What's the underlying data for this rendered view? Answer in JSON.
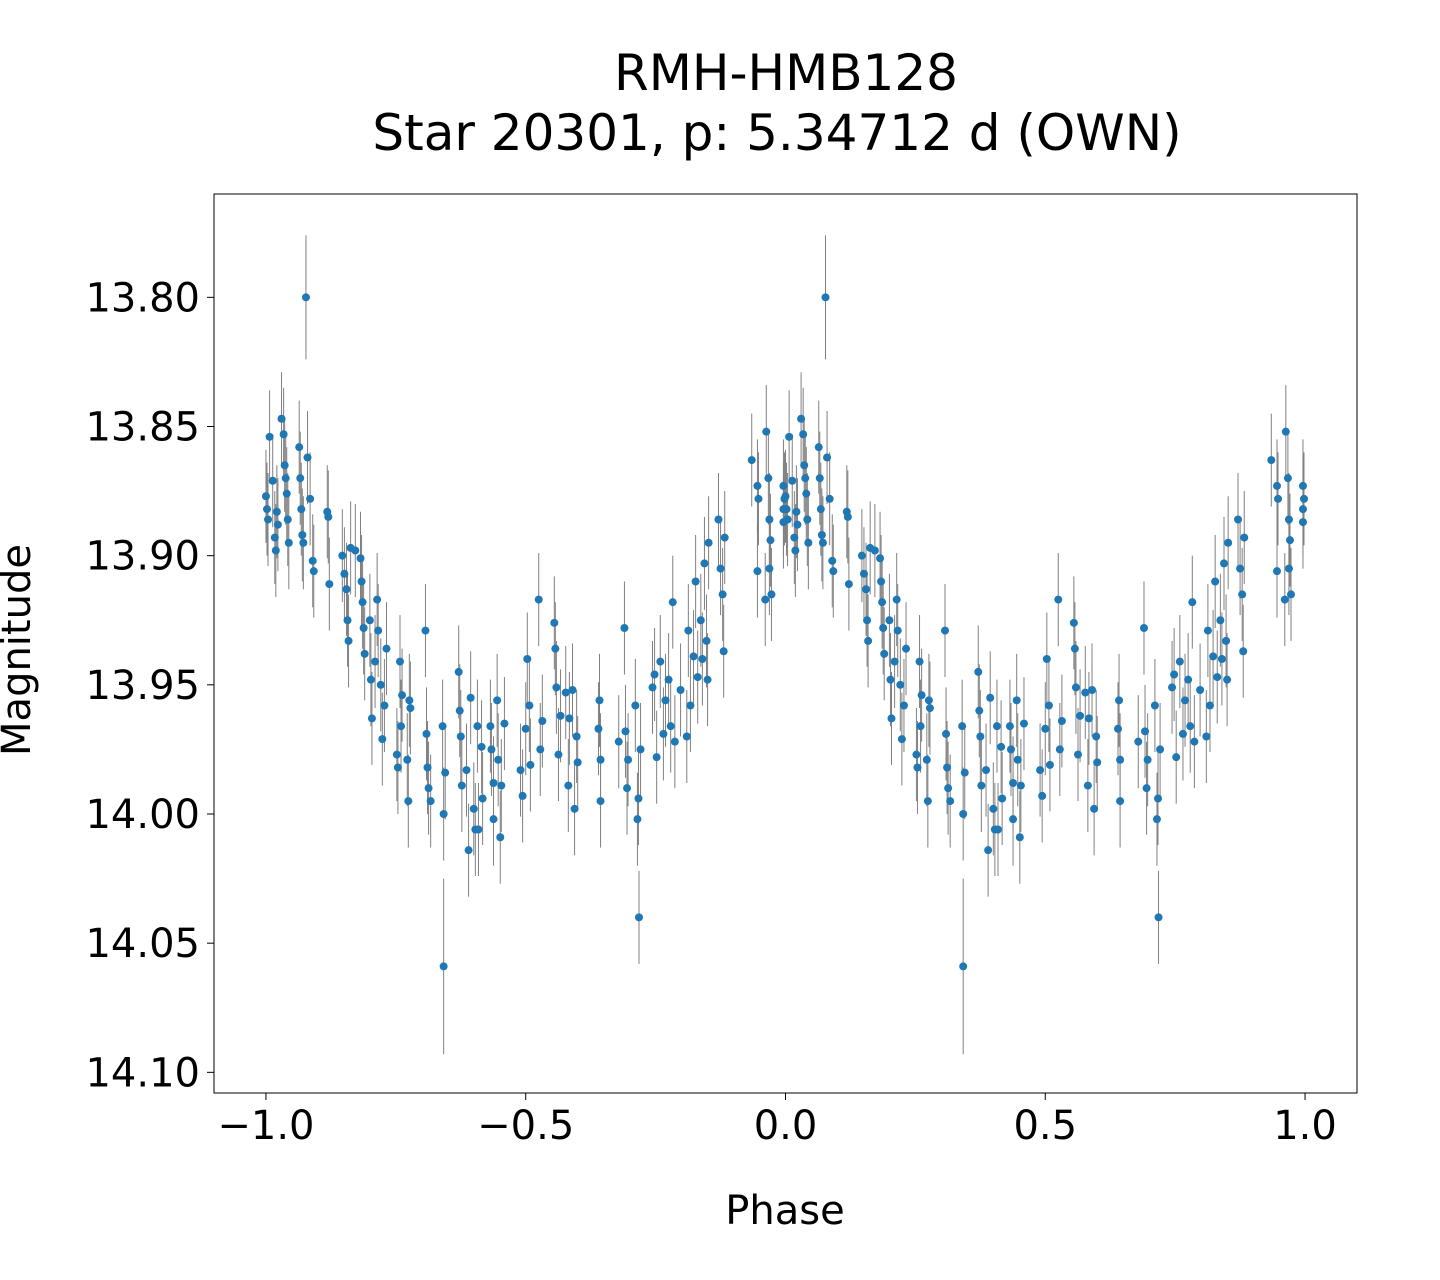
{
  "chart_data": {
    "type": "scatter",
    "title": [
      "RMH-HMB128",
      "Star 20301, p: 5.34712 d (OWN)"
    ],
    "xlabel": "Phase",
    "ylabel": "Magnitude",
    "xlim": [
      -1.1,
      1.1
    ],
    "ylim": [
      14.108,
      13.76
    ],
    "y_inverted": true,
    "xticks": [
      -1.0,
      -0.5,
      0.0,
      0.5,
      1.0
    ],
    "xtick_labels": [
      "−1.0",
      "−0.5",
      "0.0",
      "0.5",
      "1.0"
    ],
    "yticks": [
      13.8,
      13.85,
      13.9,
      13.95,
      14.0,
      14.05,
      14.1
    ],
    "ytick_labels": [
      "13.80",
      "13.85",
      "13.90",
      "13.95",
      "14.00",
      "14.05",
      "14.10"
    ],
    "grid": false,
    "marker_color": "#1f77b4",
    "errorbar_color": "#808080",
    "phase_repeat_offsets": [
      0,
      -1
    ],
    "points_phase_mag_err": [
      [
        0.0,
        13.877,
        0.018
      ],
      [
        0.002,
        13.882,
        0.018
      ],
      [
        0.004,
        13.886,
        0.018
      ],
      [
        0.007,
        13.854,
        0.018
      ],
      [
        0.013,
        13.871,
        0.018
      ],
      [
        0.017,
        13.893,
        0.018
      ],
      [
        0.019,
        13.898,
        0.018
      ],
      [
        0.021,
        13.883,
        0.018
      ],
      [
        0.023,
        13.888,
        0.018
      ],
      [
        0.03,
        13.847,
        0.018
      ],
      [
        0.034,
        13.853,
        0.018
      ],
      [
        0.036,
        13.865,
        0.018
      ],
      [
        0.038,
        13.87,
        0.018
      ],
      [
        0.04,
        13.876,
        0.018
      ],
      [
        0.042,
        13.886,
        0.018
      ],
      [
        0.044,
        13.895,
        0.018
      ],
      [
        0.064,
        13.858,
        0.018
      ],
      [
        0.066,
        13.87,
        0.018
      ],
      [
        0.068,
        13.882,
        0.018
      ],
      [
        0.07,
        13.892,
        0.018
      ],
      [
        0.072,
        13.895,
        0.018
      ],
      [
        0.077,
        13.8,
        0.024
      ],
      [
        0.08,
        13.862,
        0.018
      ],
      [
        0.085,
        13.878,
        0.018
      ],
      [
        0.09,
        13.902,
        0.018
      ],
      [
        0.092,
        13.906,
        0.018
      ],
      [
        0.118,
        13.883,
        0.018
      ],
      [
        0.12,
        13.885,
        0.018
      ],
      [
        0.122,
        13.911,
        0.018
      ],
      [
        0.147,
        13.9,
        0.018
      ],
      [
        0.151,
        13.907,
        0.018
      ],
      [
        0.155,
        13.913,
        0.018
      ],
      [
        0.157,
        13.925,
        0.018
      ],
      [
        0.159,
        13.933,
        0.018
      ],
      [
        0.163,
        13.897,
        0.018
      ],
      [
        0.172,
        13.898,
        0.018
      ],
      [
        0.182,
        13.901,
        0.018
      ],
      [
        0.184,
        13.91,
        0.018
      ],
      [
        0.186,
        13.918,
        0.018
      ],
      [
        0.188,
        13.928,
        0.018
      ],
      [
        0.19,
        13.938,
        0.018
      ],
      [
        0.2,
        13.925,
        0.018
      ],
      [
        0.202,
        13.948,
        0.018
      ],
      [
        0.204,
        13.963,
        0.018
      ],
      [
        0.21,
        13.941,
        0.018
      ],
      [
        0.214,
        13.917,
        0.018
      ],
      [
        0.216,
        13.929,
        0.018
      ],
      [
        0.221,
        13.95,
        0.018
      ],
      [
        0.224,
        13.971,
        0.018
      ],
      [
        0.228,
        13.958,
        0.018
      ],
      [
        0.232,
        13.936,
        0.018
      ],
      [
        0.252,
        13.977,
        0.018
      ],
      [
        0.254,
        13.982,
        0.018
      ],
      [
        0.258,
        13.941,
        0.018
      ],
      [
        0.26,
        13.966,
        0.018
      ],
      [
        0.262,
        13.954,
        0.018
      ],
      [
        0.272,
        13.979,
        0.018
      ],
      [
        0.274,
        13.995,
        0.018
      ],
      [
        0.276,
        13.956,
        0.018
      ],
      [
        0.278,
        13.959,
        0.018
      ],
      [
        0.307,
        13.929,
        0.018
      ],
      [
        0.309,
        13.969,
        0.018
      ],
      [
        0.311,
        13.982,
        0.018
      ],
      [
        0.313,
        13.99,
        0.018
      ],
      [
        0.317,
        13.995,
        0.018
      ],
      [
        0.34,
        13.966,
        0.018
      ],
      [
        0.342,
        14.0,
        0.018
      ],
      [
        0.342,
        14.059,
        0.034
      ],
      [
        0.345,
        13.984,
        0.018
      ],
      [
        0.371,
        13.945,
        0.018
      ],
      [
        0.373,
        13.96,
        0.018
      ],
      [
        0.375,
        13.97,
        0.018
      ],
      [
        0.377,
        13.989,
        0.018
      ],
      [
        0.386,
        13.983,
        0.018
      ],
      [
        0.39,
        14.014,
        0.018
      ],
      [
        0.394,
        13.955,
        0.018
      ],
      [
        0.4,
        13.998,
        0.018
      ],
      [
        0.403,
        14.006,
        0.018
      ],
      [
        0.407,
        13.966,
        0.018
      ],
      [
        0.409,
        14.006,
        0.018
      ],
      [
        0.415,
        13.974,
        0.018
      ],
      [
        0.417,
        13.994,
        0.018
      ],
      [
        0.432,
        13.966,
        0.018
      ],
      [
        0.434,
        13.975,
        0.018
      ],
      [
        0.438,
        13.988,
        0.018
      ],
      [
        0.438,
        14.002,
        0.018
      ],
      [
        0.445,
        13.956,
        0.018
      ],
      [
        0.447,
        13.979,
        0.018
      ],
      [
        0.451,
        14.009,
        0.018
      ],
      [
        0.453,
        13.989,
        0.018
      ],
      [
        0.459,
        13.965,
        0.018
      ],
      [
        0.49,
        13.983,
        0.018
      ],
      [
        0.494,
        13.993,
        0.018
      ],
      [
        0.5,
        13.967,
        0.018
      ],
      [
        0.503,
        13.94,
        0.018
      ],
      [
        0.507,
        13.958,
        0.018
      ],
      [
        0.509,
        13.981,
        0.018
      ],
      [
        0.525,
        13.917,
        0.018
      ],
      [
        0.528,
        13.975,
        0.018
      ],
      [
        0.532,
        13.964,
        0.018
      ],
      [
        0.555,
        13.926,
        0.018
      ],
      [
        0.557,
        13.936,
        0.018
      ],
      [
        0.559,
        13.951,
        0.018
      ],
      [
        0.563,
        13.977,
        0.018
      ],
      [
        0.567,
        13.962,
        0.018
      ],
      [
        0.577,
        13.953,
        0.018
      ],
      [
        0.582,
        13.989,
        0.018
      ],
      [
        0.584,
        13.963,
        0.018
      ],
      [
        0.59,
        13.952,
        0.018
      ],
      [
        0.594,
        13.998,
        0.018
      ],
      [
        0.598,
        13.97,
        0.018
      ],
      [
        0.6,
        13.98,
        0.018
      ],
      [
        0.64,
        13.967,
        0.018
      ],
      [
        0.642,
        13.956,
        0.018
      ],
      [
        0.644,
        13.995,
        0.018
      ],
      [
        0.644,
        13.979,
        0.018
      ],
      [
        0.679,
        13.972,
        0.018
      ],
      [
        0.69,
        13.928,
        0.018
      ],
      [
        0.692,
        13.968,
        0.018
      ],
      [
        0.695,
        13.99,
        0.018
      ],
      [
        0.697,
        13.979,
        0.018
      ],
      [
        0.711,
        13.958,
        0.018
      ],
      [
        0.715,
        14.002,
        0.018
      ],
      [
        0.717,
        13.994,
        0.018
      ],
      [
        0.718,
        14.04,
        0.018
      ],
      [
        0.721,
        13.975,
        0.018
      ],
      [
        0.744,
        13.951,
        0.018
      ],
      [
        0.748,
        13.946,
        0.018
      ],
      [
        0.752,
        13.978,
        0.018
      ],
      [
        0.759,
        13.941,
        0.018
      ],
      [
        0.765,
        13.969,
        0.018
      ],
      [
        0.769,
        13.956,
        0.018
      ],
      [
        0.775,
        13.948,
        0.018
      ],
      [
        0.779,
        13.966,
        0.018
      ],
      [
        0.783,
        13.918,
        0.018
      ],
      [
        0.787,
        13.972,
        0.018
      ],
      [
        0.798,
        13.952,
        0.018
      ],
      [
        0.81,
        13.97,
        0.018
      ],
      [
        0.813,
        13.929,
        0.018
      ],
      [
        0.817,
        13.958,
        0.018
      ],
      [
        0.823,
        13.939,
        0.018
      ],
      [
        0.827,
        13.91,
        0.018
      ],
      [
        0.831,
        13.947,
        0.018
      ],
      [
        0.837,
        13.925,
        0.018
      ],
      [
        0.84,
        13.94,
        0.018
      ],
      [
        0.844,
        13.903,
        0.018
      ],
      [
        0.848,
        13.933,
        0.018
      ],
      [
        0.85,
        13.948,
        0.018
      ],
      [
        0.852,
        13.895,
        0.018
      ],
      [
        0.871,
        13.886,
        0.018
      ],
      [
        0.875,
        13.905,
        0.018
      ],
      [
        0.879,
        13.915,
        0.018
      ],
      [
        0.881,
        13.937,
        0.018
      ],
      [
        0.883,
        13.893,
        0.018
      ],
      [
        0.935,
        13.863,
        0.018
      ],
      [
        0.946,
        13.873,
        0.018
      ],
      [
        0.948,
        13.878,
        0.018
      ],
      [
        0.946,
        13.906,
        0.018
      ],
      [
        0.961,
        13.917,
        0.018
      ],
      [
        0.963,
        13.852,
        0.018
      ],
      [
        0.967,
        13.87,
        0.018
      ],
      [
        0.969,
        13.886,
        0.018
      ],
      [
        0.971,
        13.894,
        0.018
      ],
      [
        0.969,
        13.905,
        0.018
      ],
      [
        0.973,
        13.915,
        0.018
      ],
      [
        0.996,
        13.873,
        0.018
      ],
      [
        0.996,
        13.882,
        0.018
      ],
      [
        0.996,
        13.887,
        0.018
      ],
      [
        0.998,
        13.878,
        0.018
      ]
    ]
  }
}
